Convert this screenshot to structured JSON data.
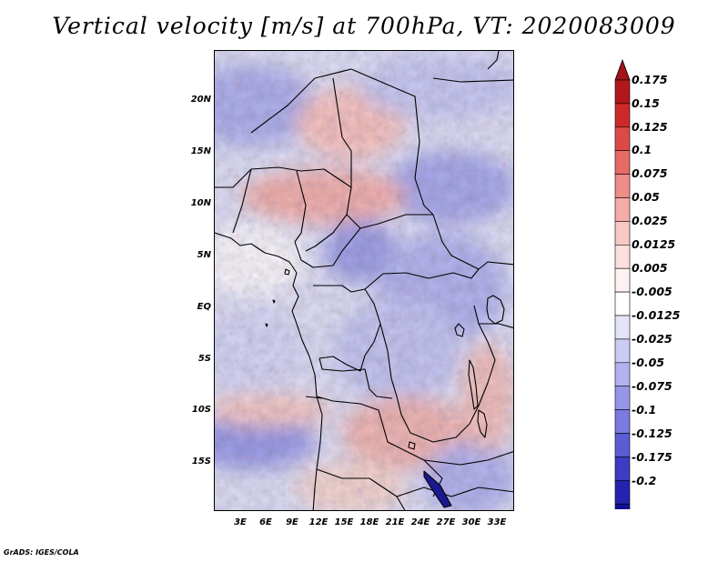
{
  "title": "Vertical velocity [m/s] at 700hPa, VT: 2020083009",
  "credit": "GrADS: IGES/COLA",
  "map": {
    "lat_labels": [
      "20N",
      "15N",
      "10N",
      "5N",
      "EQ",
      "5S",
      "10S",
      "15S"
    ],
    "lon_labels": [
      "3E",
      "6E",
      "9E",
      "12E",
      "15E",
      "18E",
      "21E",
      "24E",
      "27E",
      "30E",
      "33E"
    ]
  },
  "colorbar": {
    "labels": [
      "0.175",
      "0.15",
      "0.125",
      "0.1",
      "0.075",
      "0.05",
      "0.025",
      "0.0125",
      "0.005",
      "-0.005",
      "-0.0125",
      "-0.025",
      "-0.05",
      "-0.075",
      "-0.1",
      "-0.125",
      "-0.175",
      "-0.2"
    ],
    "colors": [
      "#b2181b",
      "#cc2a2a",
      "#dc4a48",
      "#e66a66",
      "#ee8c88",
      "#f4aca8",
      "#f8c8c4",
      "#fbe0dd",
      "#fdf2f1",
      "#ffffff",
      "#e4e4f8",
      "#cbcbf4",
      "#b2b2ef",
      "#9696e8",
      "#7a7ae0",
      "#5c5cd4",
      "#3c3cc4",
      "#2424b0",
      "#101094"
    ],
    "top_arrow_color": "#a4131a",
    "bottom_arrow_color": "#0a0a80"
  }
}
